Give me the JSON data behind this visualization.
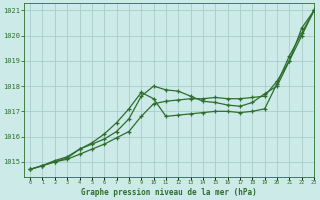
{
  "title": "Graphe pression niveau de la mer (hPa)",
  "bg_color": "#cceae8",
  "grid_color": "#aacccc",
  "line_color": "#2d6e2d",
  "xlim": [
    -0.5,
    23
  ],
  "ylim": [
    1014.4,
    1021.3
  ],
  "yticks": [
    1015,
    1016,
    1017,
    1018,
    1019,
    1020,
    1021
  ],
  "xticks": [
    0,
    1,
    2,
    3,
    4,
    5,
    6,
    7,
    8,
    9,
    10,
    11,
    12,
    13,
    14,
    15,
    16,
    17,
    18,
    19,
    20,
    21,
    22,
    23
  ],
  "series1_x": [
    0,
    1,
    2,
    3,
    4,
    5,
    6,
    7,
    8,
    9,
    10,
    11,
    12,
    13,
    14,
    15,
    16,
    17,
    18,
    19,
    20,
    21,
    22,
    23
  ],
  "series1_y": [
    1014.7,
    1014.85,
    1015.0,
    1015.1,
    1015.3,
    1015.5,
    1015.7,
    1015.95,
    1016.2,
    1016.8,
    1017.3,
    1017.4,
    1017.45,
    1017.5,
    1017.5,
    1017.55,
    1017.5,
    1017.5,
    1017.55,
    1017.6,
    1018.2,
    1019.0,
    1020.3,
    1021.0
  ],
  "series2_x": [
    0,
    1,
    2,
    3,
    4,
    5,
    6,
    7,
    8,
    9,
    10,
    11,
    12,
    13,
    14,
    15,
    16,
    17,
    18,
    19,
    20,
    21,
    22,
    23
  ],
  "series2_y": [
    1014.7,
    1014.85,
    1015.0,
    1015.15,
    1015.5,
    1015.7,
    1015.9,
    1016.2,
    1016.7,
    1017.6,
    1018.0,
    1017.85,
    1017.8,
    1017.6,
    1017.4,
    1017.35,
    1017.25,
    1017.2,
    1017.35,
    1017.7,
    1018.0,
    1019.0,
    1020.0,
    1021.0
  ],
  "series3_x": [
    0,
    1,
    2,
    3,
    4,
    5,
    6,
    7,
    8,
    9,
    10,
    11,
    12,
    13,
    14,
    15,
    16,
    17,
    18,
    19,
    20,
    21,
    22,
    23
  ],
  "series3_y": [
    1014.7,
    1014.85,
    1015.05,
    1015.2,
    1015.5,
    1015.75,
    1016.1,
    1016.55,
    1017.1,
    1017.75,
    1017.5,
    1016.8,
    1016.85,
    1016.9,
    1016.95,
    1017.0,
    1017.0,
    1016.95,
    1017.0,
    1017.1,
    1018.1,
    1019.2,
    1020.1,
    1021.0
  ]
}
